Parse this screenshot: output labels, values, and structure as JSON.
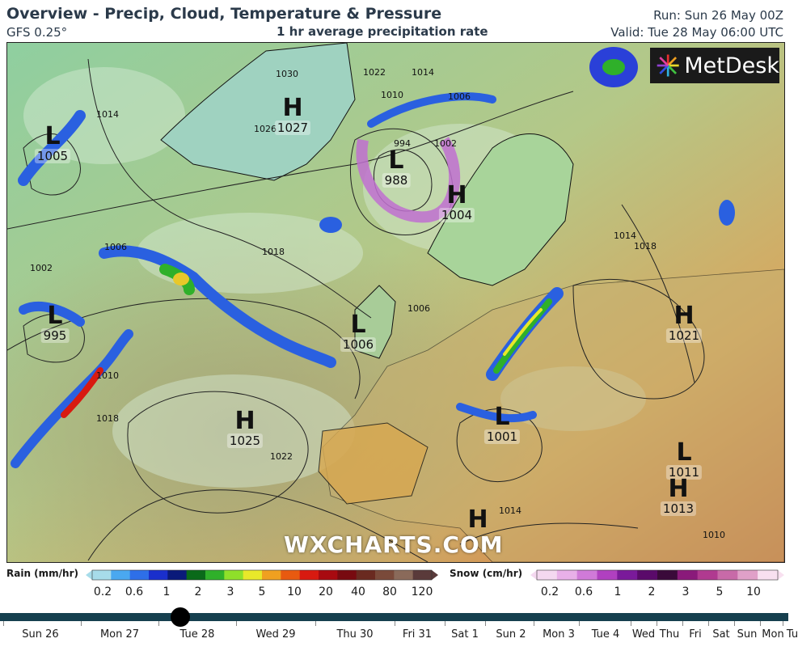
{
  "header": {
    "title": "Overview - Precip, Cloud, Temperature & Pressure",
    "model": "GFS 0.25°",
    "subtitle": "1 hr average precipitation rate",
    "run": "Run: Sun 26 May 00Z",
    "valid": "Valid: Tue 28 May 06:00 UTC"
  },
  "branding": {
    "logo_text": "MetDesk",
    "watermark": "WXCHARTS.COM"
  },
  "pressure_centers": [
    {
      "type": "L",
      "value": "1005"
    },
    {
      "type": "H",
      "value": "1027"
    },
    {
      "type": "L",
      "value": "988"
    },
    {
      "type": "H",
      "value": "1004"
    },
    {
      "type": "L",
      "value": "995"
    },
    {
      "type": "L",
      "value": "1006"
    },
    {
      "type": "H",
      "value": "1021"
    },
    {
      "type": "H",
      "value": "1025"
    },
    {
      "type": "L",
      "value": "1001"
    },
    {
      "type": "L",
      "value": "1011"
    },
    {
      "type": "H",
      "value": "1013"
    },
    {
      "type": "H",
      "value": ""
    }
  ],
  "isobar_labels": [
    "1030",
    "1022",
    "1014",
    "1010",
    "1006",
    "994",
    "1002",
    "1026",
    "1018",
    "1002",
    "1006",
    "1014",
    "1018",
    "1010",
    "1018",
    "1022",
    "1006",
    "1014",
    "1010",
    "1014"
  ],
  "legend": {
    "rain_title": "Rain (mm/hr)",
    "rain_ticks": [
      "0.2",
      "0.6",
      "1",
      "2",
      "3",
      "5",
      "10",
      "20",
      "40",
      "80",
      "120"
    ],
    "rain_colors": [
      "#a7dcea",
      "#4aa8f0",
      "#2e6fe8",
      "#1a2fcc",
      "#0a1a7a",
      "#0a6a1a",
      "#2fb02a",
      "#8fe02a",
      "#e8e82a",
      "#f0a020",
      "#e85a10",
      "#d81a10",
      "#a80a10",
      "#780a10",
      "#6a2a20",
      "#7a4a3a",
      "#8a6a5a",
      "#5a3a3a"
    ],
    "snow_title": "Snow (cm/hr)",
    "snow_ticks": [
      "0.2",
      "0.6",
      "1",
      "2",
      "3",
      "5",
      "10"
    ],
    "snow_colors": [
      "#f4d8f0",
      "#e8b0e8",
      "#d07ad8",
      "#b040c0",
      "#7a1a9a",
      "#5a0a6a",
      "#3a0a3a",
      "#8a1a7a",
      "#b03a90",
      "#c86aa8",
      "#e0a0c8",
      "#f8e0f0"
    ]
  },
  "timeline": {
    "days": [
      "Sun 26",
      "Mon 27",
      "Tue 28",
      "Wed 29",
      "Thu 30",
      "Fri 31",
      "Sat 1",
      "Sun 2",
      "Mon 3",
      "Tue 4",
      "Wed",
      "Thu",
      "Fri",
      "Sat",
      "Sun",
      "Mon",
      "Tu"
    ],
    "current": "Tue 28"
  }
}
